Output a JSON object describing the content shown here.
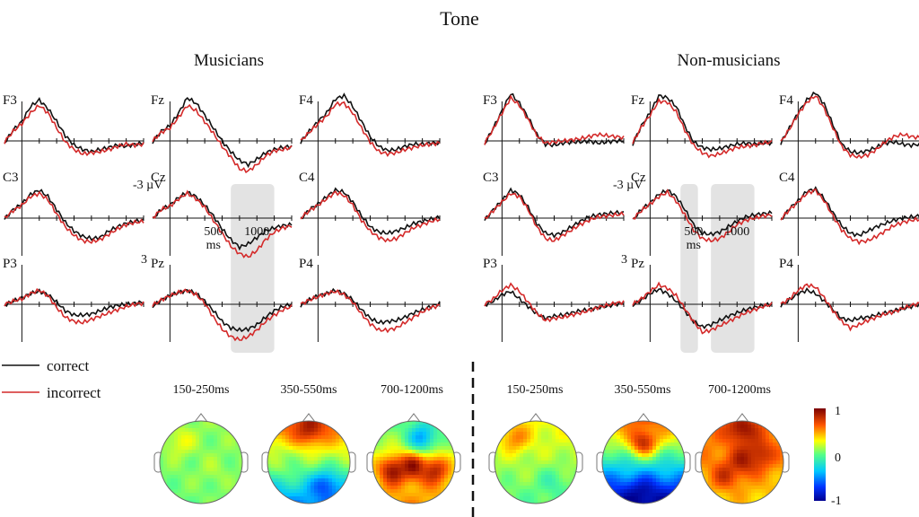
{
  "chart_data": {
    "type": "line",
    "title": "Tone",
    "groups": [
      {
        "name": "Musicians"
      },
      {
        "name": "Non-musicians"
      }
    ],
    "legend": [
      {
        "label": "correct",
        "color": "#111111"
      },
      {
        "label": "incorrect",
        "color": "#d42a2a"
      }
    ],
    "electrodes": [
      "F3",
      "Fz",
      "F4",
      "C3",
      "Cz",
      "C4",
      "P3",
      "Pz",
      "P4"
    ],
    "axis": {
      "y_neg_label": "-3 µV",
      "y_pos_label": "3",
      "x_tick_500": "500",
      "x_tick_unit": "ms",
      "x_tick_1000": "1000",
      "x_range_ms": [
        -200,
        1400
      ],
      "y_range_uv": [
        -4,
        4.5
      ],
      "y_inverted": true
    },
    "shaded_windows_ms": {
      "Musicians": [
        [
          700,
          1200
        ]
      ],
      "Non-musicians": [
        [
          350,
          550
        ],
        [
          700,
          1200
        ]
      ]
    },
    "time_ms": [
      -200,
      -100,
      0,
      100,
      200,
      300,
      400,
      500,
      600,
      700,
      800,
      900,
      1000,
      1100,
      1200,
      1300,
      1400
    ],
    "series": {
      "Musicians": {
        "F3": {
          "correct": [
            0.2,
            -1.0,
            -1.8,
            -3.2,
            -3.8,
            -3.0,
            -1.8,
            -0.5,
            0.4,
            0.8,
            1.0,
            0.8,
            0.6,
            0.4,
            0.5,
            0.3,
            0.2
          ],
          "incorrect": [
            0.1,
            -0.9,
            -1.6,
            -2.6,
            -3.3,
            -2.6,
            -1.2,
            0.1,
            0.8,
            1.2,
            1.1,
            1.0,
            0.8,
            0.5,
            0.3,
            0.4,
            0.3
          ]
        },
        "Fz": {
          "correct": [
            0.1,
            -0.9,
            -1.4,
            -2.6,
            -4.0,
            -3.5,
            -2.4,
            -1.2,
            0.0,
            1.0,
            1.8,
            2.2,
            1.7,
            1.1,
            0.8,
            0.6,
            0.5
          ],
          "incorrect": [
            0.0,
            -0.8,
            -1.2,
            -2.2,
            -3.3,
            -2.8,
            -1.8,
            -0.7,
            0.5,
            1.5,
            2.6,
            2.8,
            2.2,
            1.4,
            0.9,
            0.8,
            0.6
          ]
        },
        "F4": {
          "correct": [
            0.1,
            -0.9,
            -1.8,
            -2.6,
            -3.9,
            -4.2,
            -3.2,
            -1.8,
            -0.4,
            0.5,
            0.9,
            0.8,
            0.5,
            0.3,
            0.3,
            0.2,
            0.2
          ],
          "incorrect": [
            0.0,
            -0.8,
            -1.6,
            -2.3,
            -3.4,
            -3.5,
            -2.6,
            -1.2,
            0.1,
            1.0,
            1.2,
            1.1,
            0.8,
            0.6,
            0.4,
            0.3,
            0.2
          ]
        },
        "C3": {
          "correct": [
            0.1,
            -0.8,
            -1.3,
            -2.2,
            -2.6,
            -2.0,
            -0.8,
            0.4,
            1.2,
            1.7,
            1.9,
            1.8,
            1.2,
            0.8,
            0.5,
            0.3,
            0.2
          ],
          "incorrect": [
            0.0,
            -0.7,
            -1.2,
            -2.0,
            -2.3,
            -1.7,
            -0.4,
            0.8,
            1.6,
            2.1,
            2.2,
            2.0,
            1.5,
            1.0,
            0.6,
            0.4,
            0.3
          ]
        },
        "Cz": {
          "correct": [
            0.1,
            -0.8,
            -1.2,
            -1.9,
            -2.4,
            -2.0,
            -1.2,
            -0.2,
            1.0,
            2.0,
            2.7,
            2.4,
            1.8,
            1.2,
            0.9,
            0.7,
            0.6
          ],
          "incorrect": [
            0.0,
            -0.8,
            -1.1,
            -1.8,
            -2.3,
            -1.8,
            -1.0,
            0.2,
            1.4,
            2.6,
            3.3,
            3.6,
            3.0,
            2.0,
            1.3,
            0.9,
            0.7
          ]
        },
        "C4": {
          "correct": [
            0.1,
            -0.8,
            -1.3,
            -2.0,
            -2.6,
            -2.4,
            -1.5,
            -0.2,
            0.8,
            1.3,
            1.4,
            1.2,
            0.9,
            0.5,
            0.3,
            0.1,
            -0.1
          ],
          "incorrect": [
            0.0,
            -0.7,
            -1.2,
            -1.8,
            -2.4,
            -2.1,
            -1.2,
            0.2,
            1.2,
            1.8,
            2.1,
            1.9,
            1.4,
            0.9,
            0.6,
            0.3,
            0.1
          ]
        },
        "P3": {
          "correct": [
            0.1,
            -0.3,
            -0.6,
            -1.0,
            -1.2,
            -0.9,
            -0.2,
            0.6,
            1.0,
            1.0,
            0.9,
            0.6,
            0.3,
            0.1,
            0.0,
            -0.1,
            -0.2
          ],
          "incorrect": [
            0.0,
            -0.3,
            -0.5,
            -1.0,
            -1.3,
            -0.8,
            0.3,
            1.2,
            1.6,
            1.7,
            1.4,
            1.1,
            0.8,
            0.5,
            0.2,
            0.0,
            -0.1
          ]
        },
        "Pz": {
          "correct": [
            0.2,
            -0.4,
            -0.8,
            -1.1,
            -1.3,
            -1.0,
            -0.3,
            0.6,
            1.6,
            2.2,
            2.4,
            2.3,
            1.9,
            1.2,
            0.6,
            0.2,
            0.0
          ],
          "incorrect": [
            0.1,
            -0.4,
            -0.8,
            -1.1,
            -1.3,
            -0.9,
            -0.1,
            1.2,
            2.3,
            3.0,
            3.3,
            3.0,
            2.4,
            1.6,
            1.0,
            0.5,
            0.2
          ]
        },
        "P4": {
          "correct": [
            0.1,
            -0.4,
            -0.8,
            -1.0,
            -1.3,
            -1.0,
            -0.4,
            0.5,
            1.3,
            1.7,
            1.6,
            1.5,
            1.2,
            0.8,
            0.5,
            0.2,
            -0.1
          ],
          "incorrect": [
            0.0,
            -0.4,
            -0.7,
            -1.0,
            -1.2,
            -0.9,
            -0.2,
            0.9,
            1.8,
            2.4,
            2.4,
            2.2,
            1.7,
            1.2,
            0.7,
            0.3,
            0.1
          ]
        }
      },
      "Non-musicians": {
        "F3": {
          "correct": [
            0.3,
            -1.2,
            -2.8,
            -4.4,
            -3.5,
            -2.2,
            -0.6,
            0.3,
            0.4,
            0.2,
            0.1,
            0.1,
            0.0,
            0.2,
            0.1,
            0.0,
            0.0
          ],
          "incorrect": [
            0.2,
            -1.1,
            -2.6,
            -4.0,
            -3.3,
            -2.0,
            -0.5,
            0.2,
            0.1,
            0.0,
            -0.1,
            -0.2,
            -0.4,
            -0.6,
            -0.5,
            -0.4,
            -0.3
          ]
        },
        "Fz": {
          "correct": [
            0.3,
            -1.4,
            -2.6,
            -4.2,
            -4.0,
            -3.2,
            -1.4,
            0.1,
            0.6,
            0.8,
            0.7,
            0.5,
            0.3,
            0.2,
            0.3,
            0.2,
            0.2
          ],
          "incorrect": [
            0.2,
            -1.3,
            -2.4,
            -3.7,
            -3.6,
            -2.7,
            -1.0,
            0.4,
            1.1,
            1.4,
            1.2,
            0.9,
            0.6,
            0.5,
            0.4,
            0.2,
            0.1
          ]
        },
        "F4": {
          "correct": [
            0.2,
            -1.2,
            -2.6,
            -3.8,
            -4.5,
            -3.4,
            -1.5,
            0.3,
            1.0,
            1.1,
            0.9,
            0.6,
            0.2,
            0.1,
            0.3,
            0.4,
            0.3
          ],
          "incorrect": [
            0.1,
            -1.1,
            -2.5,
            -3.6,
            -4.2,
            -3.0,
            -1.2,
            0.5,
            1.3,
            1.5,
            1.3,
            0.8,
            0.1,
            -0.4,
            -0.6,
            -0.4,
            -0.3
          ]
        },
        "C3": {
          "correct": [
            0.2,
            -0.8,
            -1.6,
            -2.6,
            -2.2,
            -1.0,
            0.5,
            1.4,
            1.6,
            1.3,
            0.8,
            0.3,
            -0.1,
            -0.3,
            -0.4,
            -0.5,
            -0.5
          ],
          "incorrect": [
            0.1,
            -0.7,
            -1.5,
            -2.3,
            -2.0,
            -0.8,
            0.8,
            1.9,
            2.1,
            1.6,
            1.1,
            0.6,
            0.2,
            -0.1,
            -0.2,
            -0.3,
            -0.4
          ]
        },
        "Cz": {
          "correct": [
            0.2,
            -0.8,
            -1.4,
            -2.2,
            -2.6,
            -2.0,
            -0.8,
            0.6,
            1.4,
            1.5,
            1.3,
            0.8,
            0.3,
            -0.1,
            -0.3,
            -0.4,
            -0.5
          ],
          "incorrect": [
            0.1,
            -0.7,
            -1.3,
            -2.0,
            -2.4,
            -1.6,
            -0.3,
            1.1,
            1.9,
            2.1,
            1.9,
            1.3,
            0.6,
            0.2,
            0.0,
            -0.2,
            -0.3
          ]
        },
        "C4": {
          "correct": [
            0.2,
            -0.9,
            -1.6,
            -2.5,
            -2.7,
            -1.8,
            -0.5,
            0.7,
            1.4,
            1.6,
            1.2,
            0.8,
            0.5,
            0.2,
            0.0,
            -0.1,
            -0.2
          ],
          "incorrect": [
            0.1,
            -0.8,
            -1.5,
            -2.3,
            -2.6,
            -1.6,
            -0.2,
            1.1,
            1.9,
            2.2,
            2.1,
            1.7,
            1.2,
            0.7,
            0.4,
            0.2,
            0.1
          ]
        },
        "P3": {
          "correct": [
            0.1,
            -0.3,
            -0.9,
            -1.2,
            -0.5,
            0.2,
            0.9,
            1.3,
            1.1,
            1.0,
            0.8,
            0.6,
            0.5,
            0.3,
            0.2,
            0.0,
            -0.1
          ],
          "incorrect": [
            0.0,
            -0.5,
            -1.3,
            -1.8,
            -1.2,
            -0.2,
            0.8,
            1.5,
            1.3,
            1.2,
            1.0,
            0.8,
            0.6,
            0.3,
            0.1,
            -0.1,
            -0.2
          ]
        },
        "Pz": {
          "correct": [
            0.1,
            -0.4,
            -1.0,
            -1.4,
            -1.0,
            -0.3,
            0.6,
            1.6,
            2.1,
            1.9,
            1.5,
            1.1,
            0.8,
            0.5,
            0.3,
            0.1,
            0.0
          ],
          "incorrect": [
            0.0,
            -0.5,
            -1.2,
            -1.8,
            -1.5,
            -0.8,
            0.4,
            1.6,
            2.6,
            2.4,
            2.0,
            1.6,
            1.2,
            0.8,
            0.5,
            0.2,
            0.0
          ]
        },
        "P4": {
          "correct": [
            0.1,
            -0.4,
            -1.0,
            -1.3,
            -1.0,
            -0.3,
            0.5,
            1.3,
            1.5,
            1.3,
            1.2,
            1.0,
            0.8,
            0.6,
            0.4,
            0.2,
            0.0
          ],
          "incorrect": [
            0.0,
            -0.5,
            -1.3,
            -1.8,
            -1.6,
            -0.6,
            0.6,
            1.6,
            2.2,
            1.9,
            1.5,
            1.2,
            0.9,
            0.7,
            0.4,
            0.1,
            -0.1
          ]
        }
      }
    },
    "topomaps": {
      "windows": [
        "150-250ms",
        "350-550ms",
        "700-1200ms"
      ],
      "colorbar": {
        "max_label": "1",
        "mid_label": "0",
        "min_label": "-1",
        "range": [
          -1,
          1
        ]
      },
      "Musicians": [
        {
          "window": "150-250ms",
          "level_front": 0.1,
          "level_back": 0.05,
          "blobs": [
            {
              "cx": -0.5,
              "cy": -0.5,
              "v": 0.3
            },
            {
              "cx": 0.3,
              "cy": 0.2,
              "v": 0.15
            }
          ]
        },
        {
          "window": "350-550ms",
          "level_front": 0.7,
          "level_back": -0.5,
          "blobs": [
            {
              "cx": 0.0,
              "cy": -0.8,
              "v": 0.9
            },
            {
              "cx": 0.4,
              "cy": 0.6,
              "v": -0.7
            },
            {
              "cx": -0.6,
              "cy": 0.0,
              "v": 0.1
            }
          ]
        },
        {
          "window": "700-1200ms",
          "level_front": 0.0,
          "level_back": 0.5,
          "blobs": [
            {
              "cx": 0.0,
              "cy": 0.1,
              "v": 1.0
            },
            {
              "cx": -0.5,
              "cy": 0.2,
              "v": 1.0
            },
            {
              "cx": 0.5,
              "cy": 0.2,
              "v": 0.9
            },
            {
              "cx": 0.2,
              "cy": -0.6,
              "v": -0.5
            }
          ]
        }
      ],
      "Non-musicians": [
        {
          "window": "150-250ms",
          "level_front": 0.3,
          "level_back": 0.0,
          "blobs": [
            {
              "cx": -0.5,
              "cy": -0.6,
              "v": 0.6
            },
            {
              "cx": 0.4,
              "cy": 0.5,
              "v": -0.1
            }
          ]
        },
        {
          "window": "350-550ms",
          "level_front": 0.6,
          "level_back": -1.0,
          "blobs": [
            {
              "cx": 0.0,
              "cy": -0.5,
              "v": 0.9
            },
            {
              "cx": 0.0,
              "cy": 0.8,
              "v": -1.0
            }
          ]
        },
        {
          "window": "700-1200ms",
          "level_front": 0.6,
          "level_back": 0.4,
          "blobs": [
            {
              "cx": 0.0,
              "cy": 0.0,
              "v": 0.9
            },
            {
              "cx": -0.4,
              "cy": 0.3,
              "v": 0.8
            },
            {
              "cx": 0.4,
              "cy": -0.2,
              "v": 0.9
            },
            {
              "cx": 0.0,
              "cy": -0.8,
              "v": 1.0
            }
          ]
        }
      ]
    }
  }
}
